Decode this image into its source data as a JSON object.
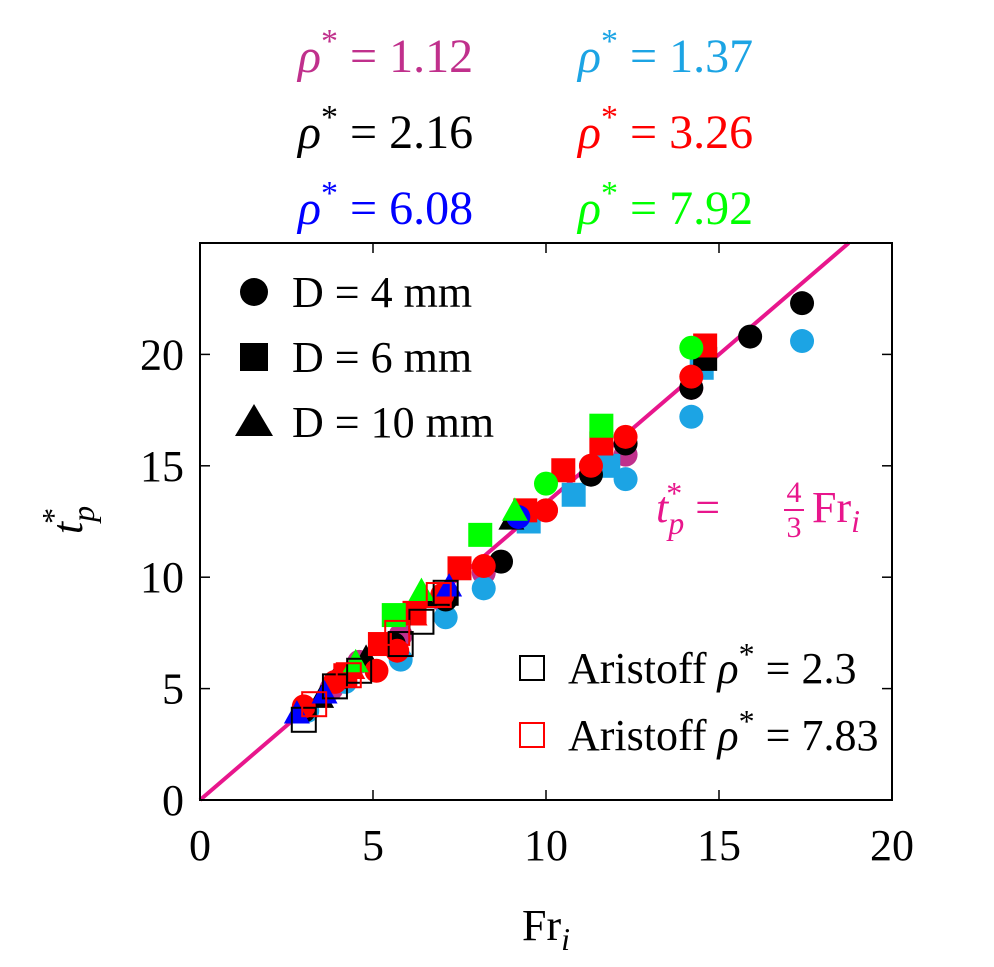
{
  "chart_data": {
    "type": "scatter",
    "xlabel": "Fr",
    "xlabel_sub": "i",
    "ylabel": "t",
    "ylabel_sup": "*",
    "ylabel_sub": "p",
    "xlim": [
      0,
      20
    ],
    "ylim": [
      0,
      25
    ],
    "x_ticks": [
      "0",
      "5",
      "10",
      "15",
      "20"
    ],
    "y_ticks": [
      "0",
      "5",
      "10",
      "15",
      "20"
    ],
    "grid": false,
    "density_legend": [
      {
        "symbol": "ρ",
        "sup": "*",
        "text": " = 1.12",
        "color": "#c0308c"
      },
      {
        "symbol": "ρ",
        "sup": "*",
        "text": " = 1.37",
        "color": "#1ca4e4"
      },
      {
        "symbol": "ρ",
        "sup": "*",
        "text": " = 2.16",
        "color": "#000000"
      },
      {
        "symbol": "ρ",
        "sup": "*",
        "text": " = 3.26",
        "color": "#ff0000"
      },
      {
        "symbol": "ρ",
        "sup": "*",
        "text": " = 6.08",
        "color": "#0000ff"
      },
      {
        "symbol": "ρ",
        "sup": "*",
        "text": " = 7.92",
        "color": "#00ff00"
      }
    ],
    "marker_legend": [
      {
        "marker": "circle",
        "label": "D = 4 mm"
      },
      {
        "marker": "square",
        "label": "D = 6 mm"
      },
      {
        "marker": "triangle",
        "label": "D = 10 mm"
      }
    ],
    "aristoff_legend": [
      {
        "label_prefix": "Aristoff ",
        "symbol": "ρ",
        "sup": "*",
        "label_suffix": " = 2.3",
        "color": "#000000"
      },
      {
        "label_prefix": "Aristoff ",
        "symbol": "ρ",
        "sup": "*",
        "label_suffix": " = 7.83",
        "color": "#ff0000"
      }
    ],
    "fit_line": {
      "label_lhs": "t",
      "label_sup": "*",
      "label_sub": "p",
      "label_eq": " = ",
      "label_num": "4",
      "label_den": "3",
      "label_rhs": "Fr",
      "label_rhs_sub": "i",
      "slope": 1.3333,
      "color": "#e8168c"
    },
    "series": [
      {
        "color": "#c0308c",
        "points": [
          {
            "x": 3.0,
            "y": 4.1,
            "m": "circle"
          },
          {
            "x": 3.8,
            "y": 5.0,
            "m": "circle"
          },
          {
            "x": 4.6,
            "y": 6.2,
            "m": "circle"
          },
          {
            "x": 5.8,
            "y": 7.4,
            "m": "circle"
          },
          {
            "x": 7.0,
            "y": 9.0,
            "m": "circle"
          },
          {
            "x": 8.2,
            "y": 10.2,
            "m": "circle"
          },
          {
            "x": 10.0,
            "y": 13.0,
            "m": "circle"
          },
          {
            "x": 11.3,
            "y": 15.0,
            "m": "circle"
          },
          {
            "x": 12.3,
            "y": 15.5,
            "m": "circle"
          },
          {
            "x": 14.2,
            "y": 18.5,
            "m": "circle"
          }
        ]
      },
      {
        "color": "#1ca4e4",
        "points": [
          {
            "x": 3.1,
            "y": 4.0,
            "m": "circle"
          },
          {
            "x": 4.2,
            "y": 5.3,
            "m": "circle"
          },
          {
            "x": 5.8,
            "y": 6.3,
            "m": "circle"
          },
          {
            "x": 7.1,
            "y": 8.2,
            "m": "circle"
          },
          {
            "x": 8.2,
            "y": 9.5,
            "m": "circle"
          },
          {
            "x": 9.5,
            "y": 12.5,
            "m": "square"
          },
          {
            "x": 10.8,
            "y": 13.7,
            "m": "square"
          },
          {
            "x": 12.3,
            "y": 14.4,
            "m": "circle"
          },
          {
            "x": 11.8,
            "y": 15.0,
            "m": "square"
          },
          {
            "x": 14.2,
            "y": 17.2,
            "m": "circle"
          },
          {
            "x": 14.5,
            "y": 19.4,
            "m": "square"
          },
          {
            "x": 17.4,
            "y": 20.6,
            "m": "circle"
          }
        ]
      },
      {
        "color": "#000000",
        "points": [
          {
            "x": 3.0,
            "y": 4.0,
            "m": "circle"
          },
          {
            "x": 4.1,
            "y": 5.5,
            "m": "circle"
          },
          {
            "x": 5.6,
            "y": 7.0,
            "m": "circle"
          },
          {
            "x": 7.1,
            "y": 9.0,
            "m": "circle"
          },
          {
            "x": 8.7,
            "y": 10.7,
            "m": "circle"
          },
          {
            "x": 11.3,
            "y": 14.6,
            "m": "circle"
          },
          {
            "x": 12.3,
            "y": 16.0,
            "m": "circle"
          },
          {
            "x": 14.2,
            "y": 18.5,
            "m": "circle"
          },
          {
            "x": 15.9,
            "y": 20.8,
            "m": "circle"
          },
          {
            "x": 17.4,
            "y": 22.3,
            "m": "circle"
          },
          {
            "x": 3.5,
            "y": 4.6,
            "m": "triangle"
          },
          {
            "x": 4.8,
            "y": 6.4,
            "m": "triangle"
          },
          {
            "x": 6.5,
            "y": 9.1,
            "m": "triangle"
          },
          {
            "x": 9.0,
            "y": 12.6,
            "m": "triangle"
          },
          {
            "x": 14.6,
            "y": 19.8,
            "m": "square"
          }
        ]
      },
      {
        "color": "#ff0000",
        "points": [
          {
            "x": 3.0,
            "y": 4.2,
            "m": "circle"
          },
          {
            "x": 3.9,
            "y": 5.3,
            "m": "circle"
          },
          {
            "x": 5.1,
            "y": 5.8,
            "m": "circle"
          },
          {
            "x": 5.7,
            "y": 6.7,
            "m": "circle"
          },
          {
            "x": 7.0,
            "y": 9.2,
            "m": "circle"
          },
          {
            "x": 8.2,
            "y": 10.5,
            "m": "circle"
          },
          {
            "x": 10.0,
            "y": 13.0,
            "m": "circle"
          },
          {
            "x": 11.3,
            "y": 15.0,
            "m": "circle"
          },
          {
            "x": 12.3,
            "y": 16.3,
            "m": "circle"
          },
          {
            "x": 14.2,
            "y": 19.0,
            "m": "circle"
          },
          {
            "x": 4.2,
            "y": 5.6,
            "m": "square"
          },
          {
            "x": 5.2,
            "y": 7.0,
            "m": "square"
          },
          {
            "x": 6.2,
            "y": 8.4,
            "m": "square"
          },
          {
            "x": 7.5,
            "y": 10.4,
            "m": "square"
          },
          {
            "x": 9.4,
            "y": 13.0,
            "m": "square"
          },
          {
            "x": 10.5,
            "y": 14.8,
            "m": "square"
          },
          {
            "x": 11.6,
            "y": 16.0,
            "m": "square"
          },
          {
            "x": 14.6,
            "y": 20.4,
            "m": "square"
          },
          {
            "x": 4.4,
            "y": 5.9,
            "m": "triangle"
          },
          {
            "x": 6.2,
            "y": 8.3,
            "m": "triangle"
          }
        ]
      },
      {
        "color": "#0000ff",
        "points": [
          {
            "x": 2.8,
            "y": 3.9,
            "m": "triangle"
          },
          {
            "x": 3.6,
            "y": 4.8,
            "m": "triangle"
          },
          {
            "x": 7.2,
            "y": 9.6,
            "m": "triangle"
          },
          {
            "x": 9.2,
            "y": 12.7,
            "m": "circle"
          }
        ]
      },
      {
        "color": "#00ff00",
        "points": [
          {
            "x": 4.5,
            "y": 6.2,
            "m": "triangle"
          },
          {
            "x": 5.6,
            "y": 8.3,
            "m": "square"
          },
          {
            "x": 6.4,
            "y": 9.4,
            "m": "triangle"
          },
          {
            "x": 8.1,
            "y": 11.9,
            "m": "square"
          },
          {
            "x": 9.1,
            "y": 13.0,
            "m": "triangle"
          },
          {
            "x": 10.0,
            "y": 14.2,
            "m": "circle"
          },
          {
            "x": 11.6,
            "y": 16.8,
            "m": "square"
          },
          {
            "x": 14.2,
            "y": 20.3,
            "m": "circle"
          }
        ]
      }
    ],
    "aristoff_series": [
      {
        "color": "#000000",
        "points": [
          {
            "x": 3.0,
            "y": 3.6
          },
          {
            "x": 3.9,
            "y": 5.1
          },
          {
            "x": 4.6,
            "y": 5.8
          },
          {
            "x": 5.8,
            "y": 7.0
          },
          {
            "x": 6.4,
            "y": 8.0
          },
          {
            "x": 7.1,
            "y": 9.3
          }
        ]
      },
      {
        "color": "#ff0000",
        "points": [
          {
            "x": 3.3,
            "y": 4.3
          },
          {
            "x": 4.3,
            "y": 5.6
          },
          {
            "x": 5.7,
            "y": 7.5
          },
          {
            "x": 6.9,
            "y": 9.2
          }
        ]
      }
    ]
  }
}
